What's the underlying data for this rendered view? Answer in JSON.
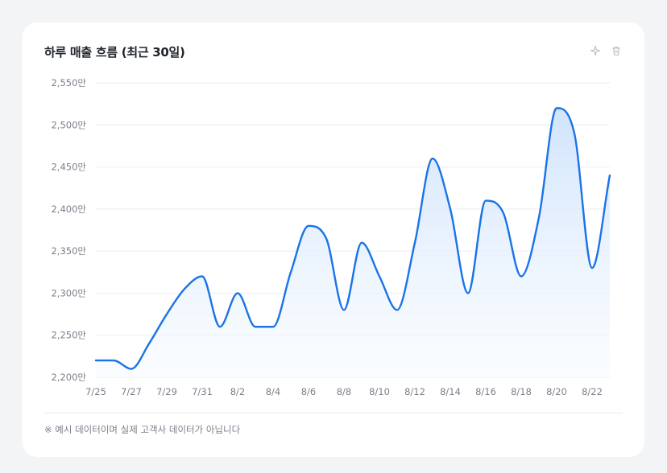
{
  "card": {
    "title": "하루 매출 흐름 (최근 30일)",
    "footnote": "※ 예시 데이터이며 실제 고객사 데이터가 아닙니다"
  },
  "icons": {
    "sparkle": "sparkle-icon",
    "trash": "trash-icon"
  },
  "colors": {
    "line": "#1a73e8",
    "area_top": "#cfe3fb",
    "area_bottom": "#f7fbff",
    "grid": "#eceef1",
    "axis_text": "#7b8089"
  },
  "chart_data": {
    "type": "area",
    "title": "하루 매출 흐름 (최근 30일)",
    "y_tick_labels": [
      "2,200만",
      "2,250만",
      "2,300만",
      "2,350만",
      "2,400만",
      "2,450만",
      "2,500만",
      "2,550만"
    ],
    "y_ticks": [
      2200,
      2250,
      2300,
      2350,
      2400,
      2450,
      2500,
      2550
    ],
    "ylim": [
      2200,
      2550
    ],
    "x_tick_labels": [
      "7/25",
      "7/27",
      "7/29",
      "7/31",
      "8/2",
      "8/4",
      "8/6",
      "8/8",
      "8/10",
      "8/12",
      "8/14",
      "8/16",
      "8/18",
      "8/20",
      "8/22"
    ],
    "x": [
      "7/25",
      "7/26",
      "7/27",
      "7/28",
      "7/29",
      "7/30",
      "7/31",
      "8/1",
      "8/2",
      "8/3",
      "8/4",
      "8/5",
      "8/6",
      "8/7",
      "8/8",
      "8/9",
      "8/10",
      "8/11",
      "8/12",
      "8/13",
      "8/14",
      "8/15",
      "8/16",
      "8/17",
      "8/18",
      "8/19",
      "8/20",
      "8/21",
      "8/22",
      "8/23"
    ],
    "values": [
      2220,
      2220,
      2210,
      2240,
      2275,
      2305,
      2320,
      2260,
      2300,
      2260,
      2260,
      2325,
      2380,
      2365,
      2280,
      2360,
      2320,
      2280,
      2360,
      2460,
      2400,
      2300,
      2410,
      2395,
      2320,
      2390,
      2520,
      2490,
      2330,
      2440
    ],
    "grid": true,
    "legend": "none"
  }
}
